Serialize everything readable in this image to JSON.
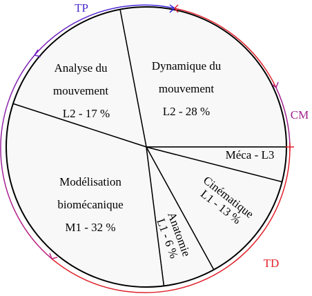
{
  "chart_data": {
    "type": "pie",
    "categories": [
      [
        "Dynamique du",
        "mouvement"
      ],
      [
        "Analyse du",
        "mouvement"
      ],
      [
        "Modélisation",
        "biomécanique"
      ],
      [
        "Anatomie"
      ],
      [
        "Cinématique"
      ],
      [
        "Méca - L3"
      ]
    ],
    "values": [
      28,
      17,
      32,
      6,
      13,
      4
    ],
    "value_labels": [
      "L2 - 28 %",
      "L2 - 17 %",
      "M1 - 32 %",
      "L1 - 6 %",
      "L1 - 13 %",
      null
    ],
    "color": "#f8f8f8",
    "annotations": [
      "TP",
      "CM",
      "TD"
    ]
  }
}
